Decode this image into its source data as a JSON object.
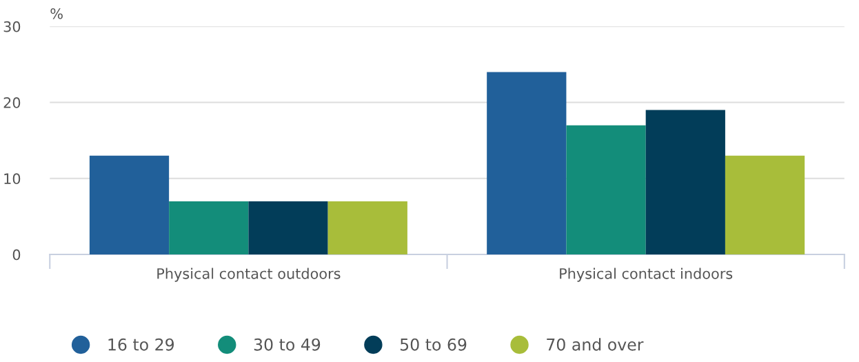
{
  "chart_data": {
    "type": "bar",
    "ylabel": "%",
    "categories": [
      "Physical contact outdoors",
      "Physical contact indoors"
    ],
    "series": [
      {
        "name": "16 to 29",
        "color": "#21609a",
        "values": [
          13,
          24
        ]
      },
      {
        "name": "30 to 49",
        "color": "#138d7a",
        "values": [
          7,
          17
        ]
      },
      {
        "name": "50 to 69",
        "color": "#023d59",
        "values": [
          7,
          19
        ]
      },
      {
        "name": "70 and over",
        "color": "#a8bd3a",
        "values": [
          7,
          13
        ]
      }
    ],
    "ylim": [
      0,
      30
    ],
    "yticks": [
      0,
      10,
      20,
      30
    ],
    "grid": "y",
    "legend": "bottom"
  }
}
